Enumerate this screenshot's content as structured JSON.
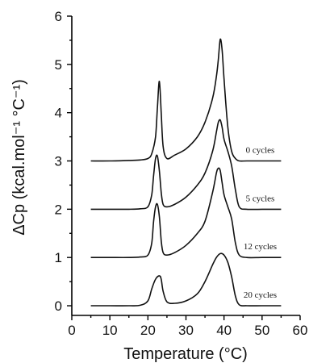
{
  "chart_data": {
    "type": "line",
    "xlabel": "Temperature (°C)",
    "ylabel": "ΔCp (kcal.mol⁻¹ °C⁻¹)",
    "xlim": [
      0,
      60
    ],
    "ylim": [
      -0.2,
      6.0
    ],
    "x_ticks": [
      "0",
      "10",
      "20",
      "30",
      "40",
      "50",
      "60"
    ],
    "y_ticks": [
      "0",
      "1",
      "2",
      "3",
      "4",
      "5",
      "6"
    ],
    "grid": false,
    "series": [
      {
        "name": "0 cycles",
        "x": [
          5,
          10,
          15,
          18,
          20,
          21,
          22,
          22.5,
          23,
          23.5,
          24,
          25,
          27,
          30,
          33,
          35,
          37,
          38,
          38.5,
          39,
          39.5,
          40,
          41,
          42,
          43,
          44,
          46,
          50,
          55
        ],
        "y": [
          3.0,
          3.0,
          3.01,
          3.02,
          3.05,
          3.15,
          3.5,
          4.1,
          4.65,
          4.0,
          3.3,
          3.05,
          3.12,
          3.25,
          3.5,
          3.8,
          4.3,
          4.75,
          5.1,
          5.52,
          5.3,
          4.7,
          3.7,
          3.2,
          3.05,
          3.0,
          3.0,
          3.0,
          3.0
        ]
      },
      {
        "name": "5 cycles",
        "x": [
          5,
          10,
          15,
          18,
          20,
          21,
          21.5,
          22,
          22.5,
          23,
          23.5,
          24,
          25,
          27,
          30,
          33,
          35,
          37,
          38,
          38.5,
          39,
          39.5,
          40,
          41,
          42,
          43,
          44,
          46,
          50,
          55
        ],
        "y": [
          2.0,
          2.0,
          2.0,
          2.01,
          2.05,
          2.3,
          2.7,
          3.05,
          3.1,
          2.8,
          2.35,
          2.1,
          2.05,
          2.1,
          2.25,
          2.5,
          2.75,
          3.2,
          3.6,
          3.8,
          3.85,
          3.7,
          3.45,
          3.2,
          2.9,
          2.4,
          2.05,
          2.0,
          2.0,
          2.0
        ]
      },
      {
        "name": "12 cycles",
        "x": [
          5,
          10,
          15,
          18,
          20,
          21,
          21.5,
          22,
          22.5,
          23,
          23.5,
          24,
          25,
          27,
          30,
          33,
          35,
          37,
          38,
          38.5,
          39,
          39.5,
          40,
          41,
          42,
          43,
          44,
          46,
          50,
          55
        ],
        "y": [
          1.0,
          1.0,
          1.0,
          1.01,
          1.05,
          1.3,
          1.75,
          2.05,
          2.1,
          1.85,
          1.35,
          1.1,
          1.05,
          1.1,
          1.25,
          1.5,
          1.75,
          2.35,
          2.75,
          2.85,
          2.8,
          2.55,
          2.3,
          2.05,
          1.8,
          1.3,
          1.05,
          1.0,
          1.0,
          1.0
        ]
      },
      {
        "name": "20 cycles",
        "x": [
          5,
          10,
          15,
          18,
          20,
          21,
          22,
          23,
          23.5,
          24,
          25,
          27,
          30,
          33,
          35,
          37,
          38,
          39,
          40,
          41,
          42,
          43,
          44,
          46,
          50,
          55
        ],
        "y": [
          0.0,
          0.0,
          0.0,
          0.01,
          0.1,
          0.35,
          0.55,
          0.62,
          0.55,
          0.3,
          0.08,
          0.05,
          0.1,
          0.25,
          0.5,
          0.85,
          1.0,
          1.08,
          1.05,
          0.9,
          0.6,
          0.2,
          0.02,
          0.0,
          0.0,
          0.0
        ]
      }
    ],
    "annotations": [
      "0 cycles",
      "5 cycles",
      "12 cycles",
      "20 cycles"
    ]
  }
}
